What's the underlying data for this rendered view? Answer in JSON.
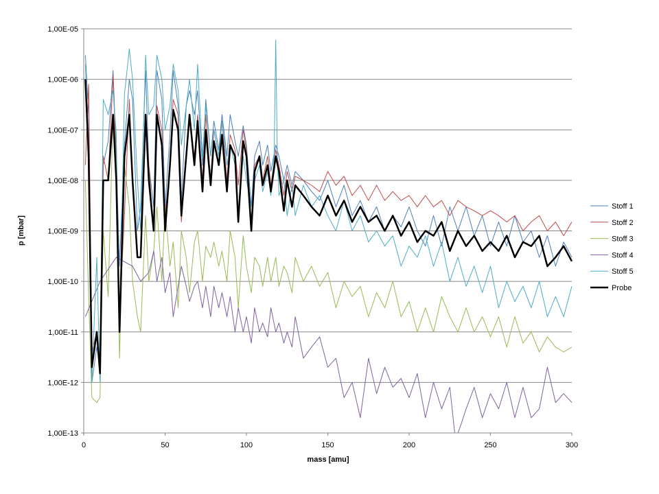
{
  "chart_data": {
    "type": "line",
    "title": "",
    "xlabel": "mass [amu]",
    "ylabel": "p [mbar]",
    "xlim": [
      0,
      300
    ],
    "ylim": [
      1e-13,
      1e-05
    ],
    "yscale": "log",
    "grid": "horizontal major",
    "legend_position": "right",
    "x_ticks": [
      "0",
      "50",
      "100",
      "150",
      "200",
      "250",
      "300"
    ],
    "y_ticks": [
      "1,00E-13",
      "1,00E-12",
      "1,00E-11",
      "1,00E-10",
      "1,00E-09",
      "1,00E-08",
      "1,00E-07",
      "1,00E-06",
      "1,00E-05"
    ],
    "series": [
      {
        "name": "Stoff 1",
        "color": "#4a7ebb",
        "width": 1,
        "x": [
          1,
          3,
          5,
          8,
          10,
          12,
          15,
          18,
          20,
          22,
          25,
          28,
          30,
          33,
          35,
          38,
          40,
          43,
          45,
          48,
          50,
          53,
          55,
          58,
          60,
          63,
          65,
          68,
          70,
          73,
          75,
          78,
          80,
          83,
          85,
          88,
          90,
          93,
          95,
          98,
          100,
          103,
          105,
          108,
          110,
          113,
          115,
          118,
          120,
          123,
          125,
          128,
          130,
          135,
          140,
          145,
          150,
          155,
          160,
          165,
          170,
          175,
          180,
          185,
          190,
          195,
          200,
          205,
          210,
          215,
          220,
          225,
          230,
          235,
          240,
          245,
          250,
          255,
          260,
          265,
          270,
          275,
          280,
          285,
          290,
          295,
          300
        ],
        "y": [
          3e-06,
          2e-07,
          1e-12,
          5e-12,
          2e-12,
          2e-08,
          6e-08,
          1.5e-06,
          3e-08,
          2e-10,
          5e-08,
          1e-06,
          4e-07,
          1e-09,
          3e-09,
          1.5e-06,
          2e-08,
          3e-09,
          1.5e-06,
          4e-07,
          3e-09,
          8e-08,
          1.5e-06,
          3e-07,
          4e-09,
          3e-07,
          6e-07,
          2e-07,
          6e-07,
          2e-08,
          4e-07,
          3e-08,
          1.5e-07,
          4e-08,
          2e-07,
          3e-08,
          2e-07,
          6e-08,
          3e-08,
          1.2e-07,
          5e-08,
          3e-09,
          3e-08,
          6e-08,
          2e-08,
          5e-08,
          1.5e-08,
          5e-08,
          3e-08,
          1e-08,
          2e-08,
          8e-09,
          1.5e-08,
          1e-08,
          6e-09,
          4e-09,
          1e-08,
          3e-09,
          8e-09,
          2e-09,
          4e-09,
          1.5e-09,
          3e-09,
          1e-09,
          2e-09,
          1.2e-09,
          3e-09,
          1e-09,
          5e-10,
          2e-09,
          5e-10,
          3e-09,
          1e-09,
          3e-09,
          8e-10,
          2e-09,
          5e-10,
          1.5e-09,
          5e-10,
          2e-09,
          6e-10,
          1e-09,
          3e-10,
          8e-10,
          2e-10,
          6e-10,
          3e-10
        ]
      },
      {
        "name": "Stoff 2",
        "color": "#be4b48",
        "width": 1,
        "x": [
          1,
          3,
          5,
          8,
          10,
          12,
          15,
          18,
          20,
          22,
          25,
          28,
          30,
          33,
          35,
          38,
          40,
          43,
          45,
          48,
          50,
          53,
          55,
          58,
          60,
          63,
          65,
          68,
          70,
          73,
          75,
          78,
          80,
          83,
          85,
          88,
          90,
          93,
          95,
          98,
          100,
          103,
          105,
          108,
          110,
          113,
          115,
          118,
          120,
          123,
          125,
          128,
          130,
          135,
          140,
          145,
          150,
          155,
          160,
          165,
          170,
          175,
          180,
          185,
          190,
          195,
          200,
          205,
          210,
          215,
          220,
          225,
          230,
          235,
          240,
          245,
          250,
          255,
          260,
          265,
          270,
          275,
          280,
          285,
          290,
          295,
          300
        ],
        "y": [
          2e-08,
          8e-07,
          4e-12,
          1e-11,
          2e-12,
          3e-08,
          1e-08,
          1.2e-06,
          2e-08,
          2e-11,
          2e-09,
          4e-07,
          1e-08,
          3e-10,
          3e-10,
          2e-07,
          2e-08,
          1e-09,
          3e-07,
          1e-07,
          2e-09,
          2e-08,
          4e-07,
          2e-07,
          1.5e-09,
          3e-08,
          1.5e-07,
          3e-08,
          2e-07,
          1e-08,
          2e-07,
          1e-08,
          1e-07,
          3e-08,
          1.5e-07,
          1e-08,
          8e-08,
          4e-08,
          8e-09,
          1e-07,
          4e-08,
          1.5e-09,
          2e-08,
          3e-08,
          1e-08,
          3e-08,
          8e-09,
          4e-08,
          2e-08,
          5e-09,
          1.5e-08,
          6e-09,
          1.2e-08,
          1e-08,
          8e-09,
          6e-09,
          1.5e-08,
          8e-09,
          1.2e-08,
          5e-09,
          8e-09,
          4e-09,
          8e-09,
          4e-09,
          6e-09,
          4e-09,
          5e-09,
          3e-09,
          5e-09,
          3e-09,
          4e-09,
          2e-09,
          4e-09,
          3e-09,
          2.5e-09,
          2e-09,
          2.5e-09,
          2e-09,
          1.5e-09,
          2e-09,
          1e-09,
          1.5e-09,
          2e-09,
          1e-09,
          1.5e-09,
          8e-10,
          1.5e-09
        ]
      },
      {
        "name": "Stoff 3",
        "color": "#98b954",
        "width": 1,
        "x": [
          1,
          3,
          5,
          8,
          10,
          12,
          15,
          18,
          20,
          22,
          25,
          28,
          30,
          33,
          35,
          38,
          40,
          43,
          45,
          48,
          50,
          53,
          55,
          58,
          60,
          63,
          65,
          68,
          70,
          73,
          75,
          78,
          80,
          83,
          85,
          88,
          90,
          93,
          95,
          98,
          100,
          103,
          105,
          108,
          110,
          113,
          115,
          118,
          120,
          123,
          125,
          128,
          130,
          135,
          140,
          145,
          150,
          155,
          160,
          165,
          170,
          175,
          180,
          185,
          190,
          195,
          200,
          205,
          210,
          215,
          220,
          225,
          230,
          235,
          240,
          245,
          250,
          255,
          260,
          265,
          270,
          275,
          280,
          285,
          290,
          295,
          300
        ],
        "y": [
          1e-08,
          5e-11,
          5e-13,
          4e-13,
          5e-13,
          1e-09,
          5e-11,
          2e-07,
          2e-08,
          3e-12,
          2e-08,
          3e-09,
          1e-10,
          2e-11,
          1e-11,
          2e-09,
          1e-10,
          4e-10,
          3e-09,
          1e-10,
          3e-09,
          2e-10,
          6e-10,
          3e-11,
          1e-09,
          3e-10,
          6e-11,
          6e-10,
          1e-09,
          1e-10,
          5e-10,
          3e-10,
          6e-10,
          2e-10,
          4e-10,
          1e-10,
          1e-09,
          3e-10,
          3e-11,
          8e-10,
          2e-10,
          6e-11,
          3e-10,
          2e-10,
          8e-11,
          3e-10,
          1e-10,
          3e-10,
          8e-11,
          2e-10,
          1.5e-10,
          6e-11,
          3e-10,
          1e-10,
          2e-10,
          8e-11,
          1.5e-10,
          3e-11,
          1e-10,
          5e-11,
          8e-11,
          2e-11,
          6e-11,
          3e-11,
          1e-10,
          2e-11,
          4e-11,
          1e-11,
          3e-11,
          1e-11,
          5e-11,
          2e-11,
          1e-11,
          3e-11,
          1e-11,
          2e-11,
          8e-12,
          2e-11,
          5e-12,
          2e-11,
          6e-12,
          1e-11,
          4e-12,
          8e-12,
          5e-12,
          4e-12,
          5e-12
        ]
      },
      {
        "name": "Stoff 4",
        "color": "#7d60a0",
        "width": 1,
        "x": [
          1,
          10,
          20,
          30,
          35,
          40,
          43,
          45,
          48,
          50,
          53,
          55,
          58,
          60,
          63,
          65,
          68,
          70,
          73,
          75,
          78,
          80,
          83,
          85,
          88,
          90,
          93,
          95,
          98,
          100,
          103,
          105,
          108,
          110,
          113,
          115,
          118,
          120,
          123,
          125,
          128,
          130,
          135,
          140,
          145,
          150,
          155,
          160,
          165,
          170,
          175,
          180,
          185,
          190,
          195,
          200,
          205,
          210,
          215,
          220,
          225,
          228,
          230,
          232,
          235,
          240,
          245,
          250,
          255,
          260,
          265,
          270,
          275,
          280,
          285,
          290,
          295,
          300
        ],
        "y": [
          2e-11,
          1e-10,
          3e-10,
          2e-10,
          1e-10,
          1.5e-10,
          4e-10,
          1e-10,
          3e-10,
          6e-11,
          1.5e-10,
          2e-11,
          8e-11,
          2e-10,
          8e-11,
          4e-11,
          8e-11,
          1e-10,
          3e-11,
          8e-11,
          2e-11,
          8e-11,
          3e-11,
          6e-11,
          2e-11,
          5e-11,
          1e-11,
          3e-11,
          1e-11,
          2e-11,
          6e-12,
          3e-11,
          1e-11,
          1.5e-11,
          8e-12,
          3e-11,
          1e-11,
          1.5e-11,
          6e-12,
          1e-11,
          5e-12,
          2e-11,
          3e-12,
          5e-12,
          8e-12,
          2e-12,
          3e-12,
          5e-13,
          1e-12,
          2e-13,
          3e-12,
          6e-13,
          2e-12,
          8e-13,
          1.2e-12,
          5e-13,
          1.5e-12,
          2e-13,
          1e-12,
          3e-13,
          8e-13,
          1e-13,
          5e-14,
          1.5e-13,
          3e-13,
          8e-13,
          2e-13,
          6e-13,
          3e-13,
          1e-12,
          2e-13,
          8e-13,
          2e-13,
          3e-13,
          2e-12,
          4e-13,
          6e-13,
          4e-13
        ]
      },
      {
        "name": "Stoff 5",
        "color": "#4aacc6",
        "width": 1,
        "x": [
          1,
          3,
          5,
          8,
          10,
          12,
          15,
          18,
          20,
          22,
          25,
          28,
          30,
          33,
          35,
          38,
          40,
          43,
          45,
          48,
          50,
          53,
          55,
          58,
          60,
          63,
          65,
          68,
          70,
          73,
          75,
          78,
          80,
          83,
          85,
          88,
          90,
          93,
          95,
          98,
          100,
          103,
          105,
          108,
          110,
          113,
          115,
          117,
          118,
          119,
          120,
          123,
          125,
          128,
          130,
          135,
          140,
          145,
          150,
          155,
          160,
          165,
          170,
          175,
          180,
          185,
          190,
          195,
          200,
          205,
          210,
          215,
          220,
          225,
          230,
          235,
          240,
          245,
          250,
          255,
          260,
          265,
          270,
          275,
          280,
          285,
          290,
          295,
          300
        ],
        "y": [
          2e-06,
          3e-08,
          1e-12,
          3e-10,
          1e-12,
          4e-07,
          2e-07,
          6e-07,
          8e-08,
          1e-11,
          5e-07,
          4e-06,
          1e-06,
          1e-08,
          1e-09,
          3e-06,
          2e-07,
          3e-07,
          3e-06,
          1e-06,
          1e-07,
          3e-07,
          2e-06,
          6e-07,
          5e-08,
          3e-07,
          1e-06,
          1e-07,
          2e-06,
          3e-08,
          3e-07,
          3e-08,
          1e-07,
          3e-08,
          1.5e-07,
          2e-08,
          5e-08,
          2e-08,
          2e-09,
          3e-08,
          1e-08,
          3e-09,
          1e-08,
          2e-08,
          6e-09,
          1.5e-08,
          5e-09,
          3e-08,
          6e-06,
          3e-08,
          5e-09,
          1e-08,
          2e-09,
          8e-09,
          2e-09,
          8e-09,
          3e-09,
          5e-09,
          2e-09,
          1e-09,
          4e-09,
          1e-09,
          2e-09,
          6e-10,
          1e-09,
          5e-10,
          8e-10,
          2e-10,
          5e-10,
          3e-10,
          8e-10,
          2e-10,
          6e-10,
          1e-10,
          3e-10,
          8e-11,
          2e-10,
          6e-11,
          2e-10,
          3e-11,
          1e-10,
          4e-11,
          8e-11,
          3e-11,
          1e-10,
          2e-11,
          5e-11,
          2e-11,
          8e-11
        ]
      },
      {
        "name": "Probe",
        "color": "#000000",
        "width": 2.5,
        "x": [
          1,
          3,
          5,
          8,
          10,
          12,
          15,
          18,
          20,
          22,
          25,
          28,
          30,
          33,
          35,
          38,
          40,
          43,
          45,
          48,
          50,
          53,
          55,
          58,
          60,
          63,
          65,
          68,
          70,
          73,
          75,
          78,
          80,
          83,
          85,
          88,
          90,
          93,
          95,
          98,
          100,
          103,
          105,
          108,
          110,
          113,
          115,
          118,
          120,
          123,
          125,
          128,
          130,
          135,
          140,
          145,
          150,
          155,
          160,
          165,
          170,
          175,
          180,
          185,
          190,
          195,
          200,
          205,
          210,
          215,
          220,
          225,
          230,
          235,
          240,
          245,
          250,
          255,
          260,
          265,
          270,
          275,
          280,
          285,
          290,
          295,
          300
        ],
        "y": [
          1e-06,
          3e-08,
          2e-12,
          1e-11,
          1.5e-12,
          1e-08,
          1e-08,
          2e-07,
          1e-08,
          1e-11,
          3e-08,
          2e-07,
          1e-08,
          3e-10,
          3e-10,
          2e-07,
          1e-08,
          1e-09,
          2e-07,
          5e-08,
          1e-09,
          2e-08,
          2.5e-07,
          1e-07,
          2e-09,
          3e-08,
          2e-07,
          2e-08,
          1.5e-07,
          6e-09,
          1e-07,
          8e-09,
          6e-08,
          2e-08,
          8e-08,
          6e-09,
          5e-08,
          3e-08,
          1.5e-09,
          6e-08,
          3e-08,
          1e-09,
          1.5e-08,
          3e-08,
          8e-09,
          2e-08,
          6e-09,
          3e-08,
          1.5e-08,
          2.5e-09,
          1e-08,
          3e-09,
          8e-09,
          5e-09,
          3e-09,
          2e-09,
          5e-09,
          2e-09,
          4e-09,
          1.5e-09,
          3e-09,
          1.5e-09,
          2e-09,
          1e-09,
          2e-09,
          8e-10,
          1.5e-09,
          6e-10,
          1e-09,
          8e-10,
          1.5e-09,
          4e-10,
          1e-09,
          5e-10,
          8e-10,
          4e-10,
          6e-10,
          4e-10,
          8e-10,
          3e-10,
          6e-10,
          5e-10,
          8e-10,
          2e-10,
          3e-10,
          5e-10,
          2.5e-10
        ]
      }
    ]
  }
}
